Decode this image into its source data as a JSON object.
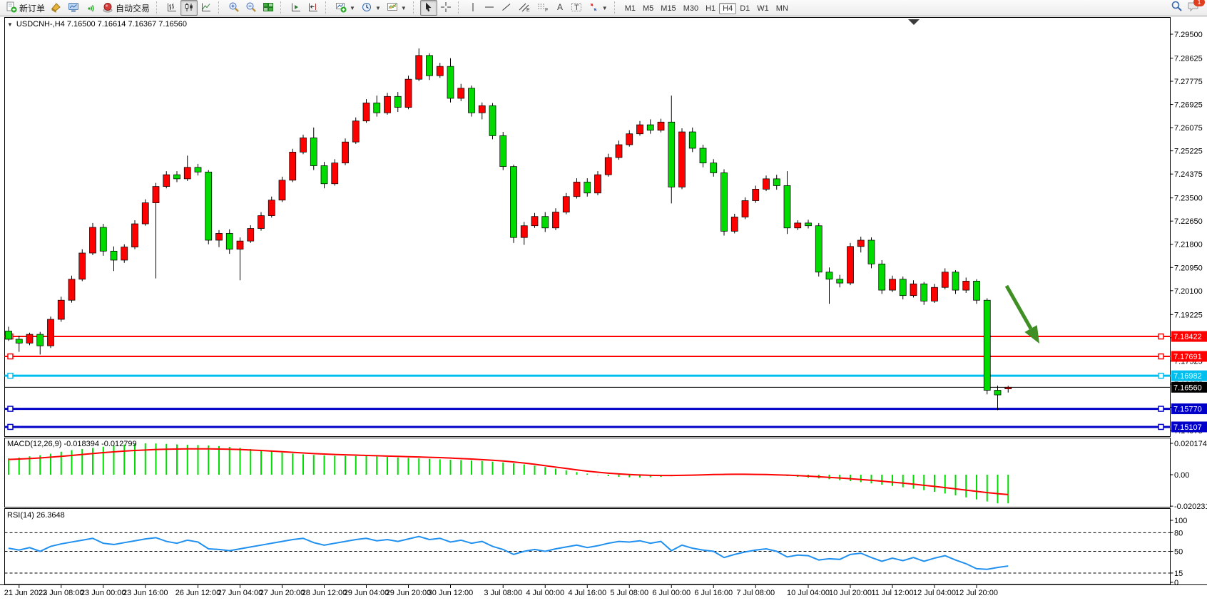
{
  "toolbar": {
    "new_order": "新订单",
    "autotrading": "自动交易",
    "timeframes": [
      "M1",
      "M5",
      "M15",
      "M30",
      "H1",
      "H4",
      "D1",
      "W1",
      "MN"
    ],
    "active_timeframe": "H4",
    "notification_badge": "1"
  },
  "chart": {
    "header": "USDCNH-,H4  7.16500 7.16614 7.16367 7.16560"
  },
  "chart_data": {
    "type": "candlestick",
    "symbol": "USDCNH-",
    "timeframe": "H4",
    "header": "USDCNH-,H4  7.16500 7.16614 7.16367 7.16560",
    "current_ohlc": {
      "open": "7.16500",
      "high": "7.16614",
      "low": "7.16367",
      "close": "7.16560"
    },
    "bull_color": "#FF0000",
    "bear_color": "#00DC00",
    "wick_color": "#000000",
    "price_axis_range": {
      "top": 7.295,
      "bottom": 7.14975
    },
    "price_ticks": [
      "7.29500",
      "7.28625",
      "7.27775",
      "7.26925",
      "7.26075",
      "7.25225",
      "7.24375",
      "7.23500",
      "7.22650",
      "7.21800",
      "7.20950",
      "7.20100",
      "7.19225",
      "7.18375",
      "7.17525",
      "7.16675",
      "7.15825",
      "7.14975"
    ],
    "time_labels": [
      {
        "text": "21 Jun 2023",
        "bar": 1
      },
      {
        "text": "22 Jun 08:00",
        "bar": 5
      },
      {
        "text": "23 Jun 00:00",
        "bar": 9
      },
      {
        "text": "23 Jun 16:00",
        "bar": 13
      },
      {
        "text": "26 Jun 12:00",
        "bar": 18
      },
      {
        "text": "27 Jun 04:00",
        "bar": 22
      },
      {
        "text": "27 Jun 20:00",
        "bar": 26
      },
      {
        "text": "28 Jun 12:00",
        "bar": 30
      },
      {
        "text": "29 Jun 04:00",
        "bar": 34
      },
      {
        "text": "29 Jun 20:00",
        "bar": 38
      },
      {
        "text": "30 Jun 12:00",
        "bar": 42
      },
      {
        "text": "3 Jul 08:00",
        "bar": 47
      },
      {
        "text": "4 Jul 00:00",
        "bar": 51
      },
      {
        "text": "4 Jul 16:00",
        "bar": 55
      },
      {
        "text": "5 Jul 08:00",
        "bar": 59
      },
      {
        "text": "6 Jul 00:00",
        "bar": 63
      },
      {
        "text": "6 Jul 16:00",
        "bar": 67
      },
      {
        "text": "7 Jul 08:00",
        "bar": 71
      },
      {
        "text": "10 Jul 04:00",
        "bar": 76
      },
      {
        "text": "10 Jul 20:00",
        "bar": 80
      },
      {
        "text": "11 Jul 12:00",
        "bar": 84
      },
      {
        "text": "12 Jul 04:00",
        "bar": 88
      },
      {
        "text": "12 Jul 20:00",
        "bar": 92
      }
    ],
    "candles": [
      [
        7.1862,
        7.1878,
        7.1826,
        7.1832
      ],
      [
        7.1832,
        7.1845,
        7.1786,
        7.1818
      ],
      [
        7.1818,
        7.1856,
        7.181,
        7.185
      ],
      [
        7.185,
        7.1859,
        7.1776,
        7.1808
      ],
      [
        7.1808,
        7.1915,
        7.18,
        7.1905
      ],
      [
        7.1905,
        7.1988,
        7.1896,
        7.1975
      ],
      [
        7.1975,
        7.2065,
        7.1966,
        7.2052
      ],
      [
        7.2052,
        7.2162,
        7.2045,
        7.2148
      ],
      [
        7.2148,
        7.2258,
        7.214,
        7.2242
      ],
      [
        7.2242,
        7.2255,
        7.2138,
        7.2155
      ],
      [
        7.2155,
        7.2172,
        7.2082,
        7.2122
      ],
      [
        7.2122,
        7.218,
        7.2112,
        7.217
      ],
      [
        7.217,
        7.2268,
        7.2162,
        7.2255
      ],
      [
        7.2255,
        7.2345,
        7.2248,
        7.2332
      ],
      [
        7.2332,
        7.2405,
        7.2055,
        7.2392
      ],
      [
        7.2392,
        7.2448,
        7.2385,
        7.2435
      ],
      [
        7.2435,
        7.2448,
        7.2408,
        7.242
      ],
      [
        7.242,
        7.2505,
        7.2412,
        7.2462
      ],
      [
        7.2462,
        7.2475,
        7.2432,
        7.2445
      ],
      [
        7.2445,
        7.2452,
        7.218,
        7.2195
      ],
      [
        7.2195,
        7.2232,
        7.217,
        7.222
      ],
      [
        7.222,
        7.2235,
        7.2145,
        7.2162
      ],
      [
        7.2162,
        7.2205,
        7.2048,
        7.2192
      ],
      [
        7.2192,
        7.225,
        7.2185,
        7.2238
      ],
      [
        7.2238,
        7.2298,
        7.223,
        7.2285
      ],
      [
        7.2285,
        7.2355,
        7.2278,
        7.2342
      ],
      [
        7.2342,
        7.2428,
        7.2335,
        7.2415
      ],
      [
        7.2415,
        7.253,
        7.2408,
        7.2518
      ],
      [
        7.2518,
        7.2582,
        7.251,
        7.257
      ],
      [
        7.257,
        7.2608,
        7.2452,
        7.2468
      ],
      [
        7.2468,
        7.2482,
        7.2385,
        7.2402
      ],
      [
        7.2402,
        7.2492,
        7.2395,
        7.2478
      ],
      [
        7.2478,
        7.2568,
        7.247,
        7.2555
      ],
      [
        7.2555,
        7.2645,
        7.2548,
        7.2632
      ],
      [
        7.2632,
        7.2712,
        7.2625,
        7.2698
      ],
      [
        7.2698,
        7.2725,
        7.2648,
        7.2662
      ],
      [
        7.2662,
        7.2735,
        7.2655,
        7.2722
      ],
      [
        7.2722,
        7.2738,
        7.2665,
        7.2682
      ],
      [
        7.2682,
        7.2798,
        7.2675,
        7.2785
      ],
      [
        7.2785,
        7.2898,
        7.2778,
        7.2872
      ],
      [
        7.2872,
        7.288,
        7.2782,
        7.2798
      ],
      [
        7.2798,
        7.2845,
        7.279,
        7.2832
      ],
      [
        7.2832,
        7.2862,
        7.27,
        7.2715
      ],
      [
        7.2715,
        7.2768,
        7.2705,
        7.2752
      ],
      [
        7.2752,
        7.2762,
        7.2648,
        7.2662
      ],
      [
        7.2662,
        7.27,
        7.2638,
        7.2688
      ],
      [
        7.2688,
        7.2698,
        7.2565,
        7.2578
      ],
      [
        7.2578,
        7.2592,
        7.2452,
        7.2465
      ],
      [
        7.2465,
        7.2472,
        7.2185,
        7.2205
      ],
      [
        7.2205,
        7.2262,
        7.2178,
        7.2248
      ],
      [
        7.2248,
        7.2295,
        7.224,
        7.2282
      ],
      [
        7.2282,
        7.2298,
        7.2225,
        7.224
      ],
      [
        7.224,
        7.2312,
        7.2232,
        7.2298
      ],
      [
        7.2298,
        7.2368,
        7.229,
        7.2355
      ],
      [
        7.2355,
        7.2422,
        7.2348,
        7.2408
      ],
      [
        7.2408,
        7.2422,
        7.2355,
        7.2368
      ],
      [
        7.2368,
        7.2448,
        7.236,
        7.2435
      ],
      [
        7.2435,
        7.2512,
        7.2428,
        7.2498
      ],
      [
        7.2498,
        7.256,
        7.249,
        7.2545
      ],
      [
        7.2545,
        7.2598,
        7.2538,
        7.2585
      ],
      [
        7.2585,
        7.2632,
        7.2578,
        7.2618
      ],
      [
        7.2618,
        7.2638,
        7.2585,
        7.2598
      ],
      [
        7.2598,
        7.264,
        7.259,
        7.2628
      ],
      [
        7.2628,
        7.2725,
        7.233,
        7.239
      ],
      [
        7.239,
        7.2605,
        7.2382,
        7.2592
      ],
      [
        7.2592,
        7.2608,
        7.2518,
        7.2532
      ],
      [
        7.2532,
        7.2545,
        7.2462,
        7.2478
      ],
      [
        7.2478,
        7.2492,
        7.2428,
        7.2442
      ],
      [
        7.2442,
        7.2455,
        7.2212,
        7.2228
      ],
      [
        7.2228,
        7.2292,
        7.222,
        7.228
      ],
      [
        7.228,
        7.2352,
        7.2272,
        7.234
      ],
      [
        7.234,
        7.2395,
        7.2332,
        7.2382
      ],
      [
        7.2382,
        7.2432,
        7.2375,
        7.242
      ],
      [
        7.242,
        7.2435,
        7.238,
        7.2395
      ],
      [
        7.2395,
        7.2448,
        7.2218,
        7.224
      ],
      [
        7.224,
        7.2268,
        7.2232,
        7.2258
      ],
      [
        7.2258,
        7.227,
        7.2238,
        7.2248
      ],
      [
        7.2248,
        7.2258,
        7.2062,
        7.2078
      ],
      [
        7.2078,
        7.2095,
        7.1962,
        7.2052
      ],
      [
        7.2052,
        7.2068,
        7.2022,
        7.2038
      ],
      [
        7.2038,
        7.2185,
        7.203,
        7.2172
      ],
      [
        7.2172,
        7.2208,
        7.215,
        7.2195
      ],
      [
        7.2195,
        7.2205,
        7.2092,
        7.2108
      ],
      [
        7.2108,
        7.2122,
        7.1998,
        7.2012
      ],
      [
        7.2012,
        7.2065,
        7.2005,
        7.2052
      ],
      [
        7.2052,
        7.2062,
        7.1978,
        7.1992
      ],
      [
        7.1992,
        7.2048,
        7.1985,
        7.2035
      ],
      [
        7.2035,
        7.2042,
        7.1958,
        7.1972
      ],
      [
        7.1972,
        7.2035,
        7.1965,
        7.2022
      ],
      [
        7.2022,
        7.2092,
        7.2015,
        7.2078
      ],
      [
        7.2078,
        7.2085,
        7.1998,
        7.2012
      ],
      [
        7.2012,
        7.2058,
        7.2002,
        7.2045
      ],
      [
        7.2045,
        7.2052,
        7.1962,
        7.1975
      ],
      [
        7.1975,
        7.1982,
        7.163,
        7.1645
      ],
      [
        7.1645,
        7.1662,
        7.1572,
        7.1628
      ],
      [
        7.165,
        7.16614,
        7.16367,
        7.1656
      ]
    ],
    "hlines": [
      {
        "price": "7.18422",
        "value": 7.18422,
        "color": "#FF0000",
        "width": 2
      },
      {
        "price": "7.17691",
        "value": 7.17691,
        "color": "#FF0000",
        "width": 2
      },
      {
        "price": "7.16982",
        "value": 7.16982,
        "color": "#00BFEF",
        "width": 3
      },
      {
        "price": "7.15770",
        "value": 7.1577,
        "color": "#0000C8",
        "width": 3
      },
      {
        "price": "7.15107",
        "value": 7.15107,
        "color": "#0000C8",
        "width": 3
      }
    ],
    "price_line": {
      "price": "7.16560",
      "value": 7.1656,
      "color": "#000000"
    },
    "arrow_annotation": {
      "color": "#3F8F24",
      "direction": "down-right"
    },
    "macd": {
      "label": "MACD(12,26,9) -0.018394 -0.012799",
      "params": "12,26,9",
      "value": "-0.018394",
      "signal_value": "-0.012799",
      "histogram_color": "#00DC00",
      "signal_color": "#FF0000",
      "ticks": [
        {
          "label": "0.020174",
          "value": 0.020174
        },
        {
          "label": "0.00",
          "value": 0
        },
        {
          "label": "-0.020231",
          "value": -0.020231
        }
      ],
      "histogram": [
        0.0105,
        0.011,
        0.0118,
        0.0125,
        0.0135,
        0.0148,
        0.0158,
        0.0165,
        0.0172,
        0.018,
        0.0188,
        0.0194,
        0.0199,
        0.0202,
        0.0201,
        0.0198,
        0.0195,
        0.0193,
        0.0191,
        0.0188,
        0.0184,
        0.0179,
        0.0173,
        0.0165,
        0.0157,
        0.0149,
        0.0142,
        0.0136,
        0.0131,
        0.0127,
        0.0124,
        0.0122,
        0.0121,
        0.012,
        0.0119,
        0.0117,
        0.0114,
        0.0111,
        0.0108,
        0.0105,
        0.0102,
        0.0099,
        0.0096,
        0.0094,
        0.0091,
        0.0088,
        0.0084,
        0.0079,
        0.0073,
        0.0066,
        0.0058,
        0.0049,
        0.0039,
        0.0028,
        0.0017,
        0.0007,
        -0.0002,
        -0.0009,
        -0.0014,
        -0.0017,
        -0.0018,
        -0.0017,
        -0.0014,
        -0.001,
        -0.0006,
        -0.0002,
        0.0002,
        0.0005,
        0.0006,
        0.0006,
        0.0005,
        0.0003,
        0.0,
        -0.0004,
        -0.0009,
        -0.0014,
        -0.0019,
        -0.0024,
        -0.0029,
        -0.0035,
        -0.0041,
        -0.0048,
        -0.0056,
        -0.0064,
        -0.0072,
        -0.0081,
        -0.009,
        -0.01,
        -0.011,
        -0.0121,
        -0.0133,
        -0.0146,
        -0.0159,
        -0.0172,
        -0.0184,
        -0.0184
      ],
      "signal": [
        0.0098,
        0.0101,
        0.0104,
        0.0108,
        0.0113,
        0.0118,
        0.0124,
        0.013,
        0.0136,
        0.0142,
        0.0147,
        0.0152,
        0.0156,
        0.0159,
        0.0162,
        0.0164,
        0.0165,
        0.0166,
        0.0166,
        0.0166,
        0.0165,
        0.0164,
        0.0162,
        0.0159,
        0.0156,
        0.0152,
        0.0148,
        0.0144,
        0.014,
        0.0136,
        0.0133,
        0.013,
        0.0128,
        0.0126,
        0.0124,
        0.0122,
        0.012,
        0.0118,
        0.0116,
        0.0114,
        0.0112,
        0.011,
        0.0107,
        0.0104,
        0.0101,
        0.0097,
        0.0093,
        0.0088,
        0.0082,
        0.0075,
        0.0067,
        0.0058,
        0.0049,
        0.004,
        0.0031,
        0.0023,
        0.0016,
        0.001,
        0.0005,
        0.0001,
        -0.0002,
        -0.0004,
        -0.0005,
        -0.0005,
        -0.0004,
        -0.0003,
        -0.0001,
        0.0001,
        0.0002,
        0.0003,
        0.0003,
        0.0002,
        0.0001,
        -0.0001,
        -0.0003,
        -0.0006,
        -0.0009,
        -0.0013,
        -0.0017,
        -0.0021,
        -0.0026,
        -0.0031,
        -0.0036,
        -0.0042,
        -0.0048,
        -0.0054,
        -0.0061,
        -0.0068,
        -0.0075,
        -0.0083,
        -0.0091,
        -0.0099,
        -0.0107,
        -0.0115,
        -0.0122,
        -0.0128
      ]
    },
    "rsi": {
      "label": "RSI(14) 26.3648",
      "period": "14",
      "value": "26.3648",
      "color": "#2090F0",
      "ticks": [
        {
          "label": "100",
          "value": 100
        },
        {
          "label": "80",
          "value": 80
        },
        {
          "label": "50",
          "value": 50
        },
        {
          "label": "15",
          "value": 15
        },
        {
          "label": "0",
          "value": 0
        }
      ],
      "levels": [
        80,
        50,
        15
      ],
      "values": [
        55,
        52,
        56,
        50,
        58,
        62,
        65,
        68,
        71,
        63,
        61,
        64,
        67,
        70,
        72,
        66,
        63,
        68,
        65,
        54,
        53,
        51,
        54,
        57,
        60,
        63,
        66,
        69,
        71,
        64,
        60,
        63,
        66,
        69,
        71,
        67,
        69,
        66,
        70,
        74,
        69,
        71,
        65,
        68,
        63,
        66,
        58,
        53,
        45,
        50,
        53,
        50,
        54,
        57,
        60,
        56,
        59,
        63,
        66,
        65,
        67,
        63,
        66,
        51,
        60,
        55,
        52,
        50,
        40,
        45,
        49,
        52,
        54,
        50,
        41,
        44,
        43,
        36,
        38,
        37,
        45,
        47,
        40,
        34,
        39,
        35,
        40,
        34,
        39,
        43,
        36,
        30,
        22,
        21,
        24,
        26.36
      ]
    }
  }
}
